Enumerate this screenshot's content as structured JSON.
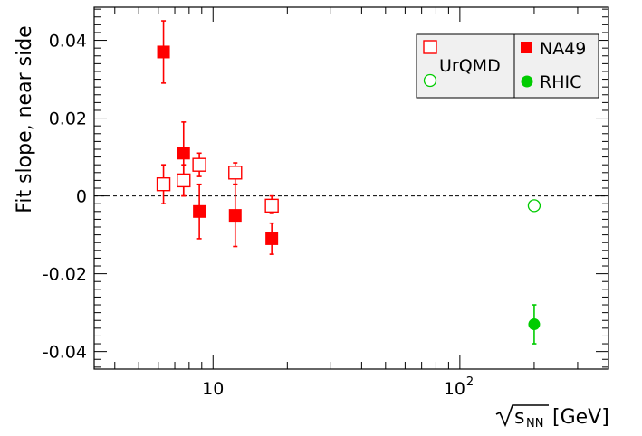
{
  "chart_data": {
    "type": "scatter",
    "ylabel": "Fit slope, near side",
    "xlabel": {
      "radicand": "s",
      "subscript": "NN",
      "unit": "[GeV]"
    },
    "x_scale": "log",
    "xlim": [
      3.3,
      400
    ],
    "ylim": [
      -0.0445,
      0.0485
    ],
    "x_tick_labels": [
      {
        "value": 10,
        "base": "10",
        "exp": ""
      },
      {
        "value": 100,
        "base": "10",
        "exp": "2"
      }
    ],
    "y_tick_labels": [
      "0.04",
      "0.02",
      "0",
      "-0.02",
      "-0.04"
    ],
    "y_tick_values": [
      0.04,
      0.02,
      0,
      -0.02,
      -0.04
    ],
    "reference_line": {
      "y": 0,
      "style": "dashed"
    },
    "grid": false,
    "legend": {
      "placement": "top-right",
      "entries": [
        {
          "label": "UrQMD"
        },
        {
          "label": "NA49"
        },
        {
          "label": "RHIC"
        }
      ]
    },
    "series": [
      {
        "name": "NA49",
        "marker": "filled-square",
        "color": "#ff0000",
        "points": [
          {
            "x": 6.3,
            "y": 0.037,
            "err_low": 0.008,
            "err_high": 0.008
          },
          {
            "x": 7.6,
            "y": 0.011,
            "err_low": 0.011,
            "err_high": 0.008
          },
          {
            "x": 8.8,
            "y": -0.004,
            "err_low": 0.007,
            "err_high": 0.007
          },
          {
            "x": 12.3,
            "y": -0.005,
            "err_low": 0.008,
            "err_high": 0.008
          },
          {
            "x": 17.3,
            "y": -0.011,
            "err_low": 0.004,
            "err_high": 0.004
          }
        ]
      },
      {
        "name": "UrQMD",
        "marker": "open-square",
        "color": "#ff0000",
        "points": [
          {
            "x": 6.3,
            "y": 0.003,
            "err_low": 0.005,
            "err_high": 0.005
          },
          {
            "x": 7.6,
            "y": 0.004,
            "err_low": 0.004,
            "err_high": 0.004
          },
          {
            "x": 8.8,
            "y": 0.008,
            "err_low": 0.003,
            "err_high": 0.003
          },
          {
            "x": 12.3,
            "y": 0.006,
            "err_low": 0.003,
            "err_high": 0.0025
          },
          {
            "x": 17.3,
            "y": -0.0025,
            "err_low": 0.002,
            "err_high": 0.0025
          }
        ]
      },
      {
        "name": "RHIC",
        "marker": "filled-circle",
        "color": "#00cc00",
        "points": [
          {
            "x": 200,
            "y": -0.033,
            "err_low": 0.005,
            "err_high": 0.005
          }
        ]
      },
      {
        "name": "RHIC-open",
        "marker": "open-circle",
        "color": "#00cc00",
        "points": [
          {
            "x": 200,
            "y": -0.0025,
            "err_low": 0,
            "err_high": 0
          }
        ]
      }
    ]
  }
}
